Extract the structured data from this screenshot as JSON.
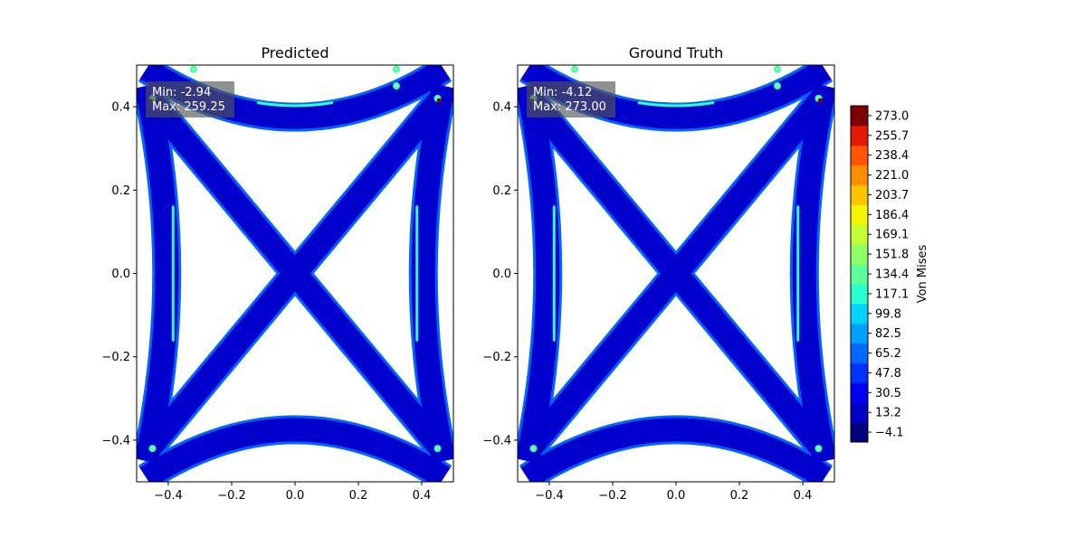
{
  "chart_data": [
    {
      "type": "heatmap",
      "title": "Predicted",
      "xlim": [
        -0.5,
        0.5
      ],
      "ylim": [
        -0.5,
        0.5
      ],
      "xticks": [
        "−0.4",
        "−0.2",
        "0.0",
        "0.2",
        "0.4"
      ],
      "yticks": [
        "−0.4",
        "−0.2",
        "0.0",
        "0.2",
        "0.4"
      ],
      "annotation": {
        "min": "Min: -2.94",
        "max": "Max: 259.25"
      },
      "stats": {
        "min": -2.94,
        "max": 259.25
      }
    },
    {
      "type": "heatmap",
      "title": "Ground Truth",
      "xlim": [
        -0.5,
        0.5
      ],
      "ylim": [
        -0.5,
        0.5
      ],
      "xticks": [
        "−0.4",
        "−0.2",
        "0.0",
        "0.2",
        "0.4"
      ],
      "yticks": [
        "−0.4",
        "−0.2",
        "0.0",
        "0.2",
        "0.4"
      ],
      "annotation": {
        "min": "Min: -4.12",
        "max": "Max: 273.00"
      },
      "stats": {
        "min": -4.12,
        "max": 273.0
      }
    }
  ],
  "colorbar": {
    "label": "Von Mises",
    "range": [
      -12.75,
      281.64
    ],
    "levels": [
      -12.75,
      4.57,
      21.88,
      39.2,
      56.51,
      73.83,
      91.14,
      108.46,
      125.78,
      143.09,
      160.41,
      177.72,
      195.04,
      212.35,
      229.67,
      246.99,
      264.3,
      281.64
    ],
    "ticks": [
      {
        "value": -4.1,
        "label": "−4.1"
      },
      {
        "value": 13.2,
        "label": "13.2"
      },
      {
        "value": 30.5,
        "label": "30.5"
      },
      {
        "value": 47.8,
        "label": "47.8"
      },
      {
        "value": 65.2,
        "label": "65.2"
      },
      {
        "value": 82.5,
        "label": "82.5"
      },
      {
        "value": 99.8,
        "label": "99.8"
      },
      {
        "value": 117.1,
        "label": "117.1"
      },
      {
        "value": 134.4,
        "label": "134.4"
      },
      {
        "value": 151.8,
        "label": "151.8"
      },
      {
        "value": 169.1,
        "label": "169.1"
      },
      {
        "value": 186.4,
        "label": "186.4"
      },
      {
        "value": 203.7,
        "label": "203.7"
      },
      {
        "value": 221.0,
        "label": "221.0"
      },
      {
        "value": 238.4,
        "label": "238.4"
      },
      {
        "value": 255.7,
        "label": "255.7"
      },
      {
        "value": 273.0,
        "label": "273.0"
      }
    ],
    "colors": [
      "#00007f",
      "#0000c9",
      "#0000f1",
      "#0032ff",
      "#0068ff",
      "#00a0ff",
      "#00d4ff",
      "#29ffcd",
      "#5cff9a",
      "#8fff66",
      "#c2ff33",
      "#f5f500",
      "#ffc400",
      "#ff8d00",
      "#ff5500",
      "#e51900",
      "#7f0000"
    ]
  },
  "field_colors": {
    "low": "#0000cd",
    "mid": "#0064ff",
    "high": "#2dffc8",
    "peak": "#a0ff60",
    "hot": "#8b0000"
  }
}
